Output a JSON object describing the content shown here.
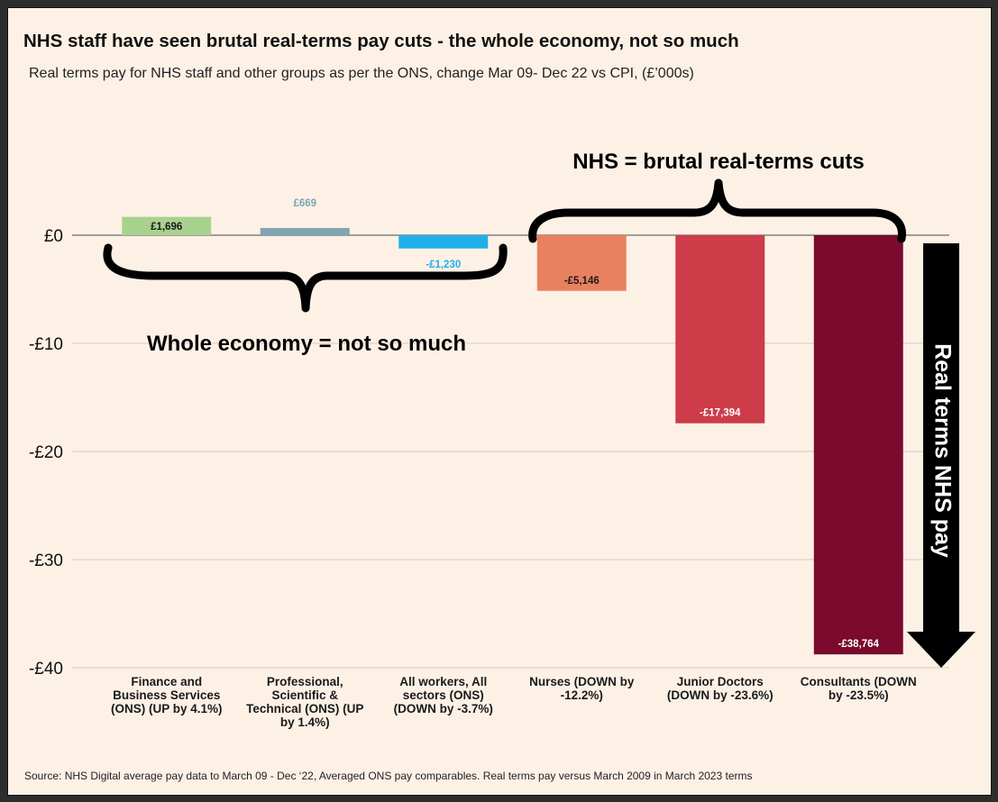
{
  "chart_data": {
    "type": "bar",
    "title": "NHS staff have seen brutal real-terms pay cuts - the whole economy, not so much",
    "subtitle": "Real terms pay for NHS staff and other groups as per the ONS, change Mar 09- Dec 22 vs CPI, (£’000s)",
    "source": "Source: NHS Digital average pay data to March 09 - Dec ‘22, Averaged ONS pay comparables. Real terms pay versus March 2009 in March 2023 terms",
    "xlabel": "",
    "ylabel": "",
    "ylim": [
      -40,
      0
    ],
    "yticks": [
      0,
      -10,
      -20,
      -30,
      -40
    ],
    "ytick_labels": [
      "£0",
      "-£10",
      "-£20",
      "-£30",
      "-£40"
    ],
    "grid": true,
    "categories": [
      [
        "Finance and",
        "Business Services",
        "(ONS) (UP by 4.1%)"
      ],
      [
        "Professional,",
        "Scientific &",
        "Technical (ONS) (UP",
        "by 1.4%)"
      ],
      [
        "All workers, All",
        "sectors (ONS)",
        "(DOWN by -3.7%)"
      ],
      [
        "Nurses      (DOWN by",
        "-12.2%)"
      ],
      [
        "Junior Doctors",
        "(DOWN by -23.6%)"
      ],
      [
        "Consultants (DOWN",
        "by -23.5%)"
      ]
    ],
    "values": [
      1.696,
      0.669,
      -1.23,
      -5.146,
      -17.394,
      -38.764
    ],
    "data_labels": [
      "£1,696",
      "£669",
      "-£1,230",
      "-£5,146",
      "-£17,394",
      "-£38,764"
    ],
    "bar_colors": [
      "#a9d18e",
      "#7fa6b2",
      "#1fb0ea",
      "#e98160",
      "#cd3c48",
      "#7b0a2e"
    ],
    "label_colors": [
      "#1a1a1a",
      "#7fa6b2",
      "#1fb0ea",
      "#1a1a1a",
      "#ffffff",
      "#ffffff"
    ],
    "annotations": {
      "economy": "Whole economy = not so much",
      "nhs": "NHS = brutal real-terms cuts",
      "arrow": "Real terms NHS pay"
    }
  }
}
